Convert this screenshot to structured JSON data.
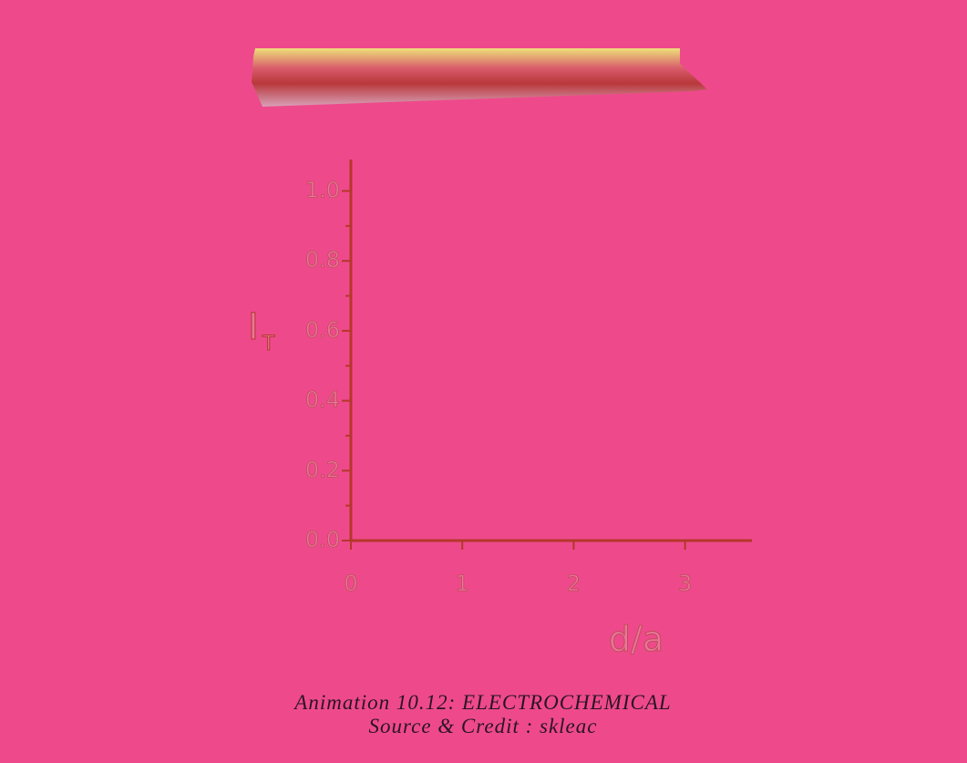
{
  "chart_data": {
    "type": "line",
    "y_label": {
      "main": "I",
      "subscript": "T"
    },
    "x_label": "d/a",
    "xlim": [
      0,
      3.6
    ],
    "xticks": [
      0,
      1,
      2,
      3
    ],
    "ylim": [
      0,
      1.09
    ],
    "yticks": [
      {
        "value": 0,
        "label": "0.0"
      },
      {
        "value": 0.2,
        "label": "0.2"
      },
      {
        "value": 0.4,
        "label": "0.4"
      },
      {
        "value": 0.6,
        "label": "0.6"
      },
      {
        "value": 0.8,
        "label": "0.8"
      },
      {
        "value": 1,
        "label": "1.0"
      }
    ],
    "yminor_ticks": [
      0.1,
      0.3,
      0.5,
      0.7,
      0.9
    ],
    "axis_color": "#b5372a",
    "series": []
  },
  "caption": {
    "title": "Animation 10.12: ELECTROCHEMICAL",
    "credit": "Source & Credit : skleac"
  }
}
